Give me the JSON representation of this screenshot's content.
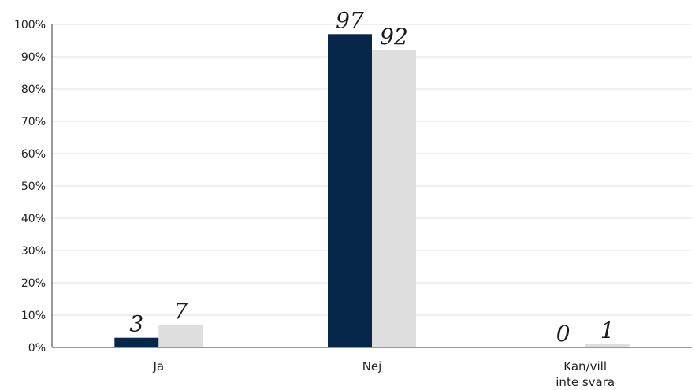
{
  "chart_data": {
    "type": "bar",
    "categories": [
      [
        "Ja"
      ],
      [
        "Nej"
      ],
      [
        "Kan/vill",
        "inte svara"
      ]
    ],
    "series": [
      {
        "values": [
          3,
          97,
          0
        ],
        "color": "#06264a"
      },
      {
        "values": [
          7,
          92,
          1
        ],
        "color": "#dedede"
      }
    ],
    "y_ticks": [
      "0%",
      "10%",
      "20%",
      "30%",
      "40%",
      "50%",
      "60%",
      "70%",
      "80%",
      "90%",
      "100%"
    ],
    "ylim": [
      0,
      100
    ],
    "grid": true,
    "data_labels": true,
    "legend": "none"
  }
}
